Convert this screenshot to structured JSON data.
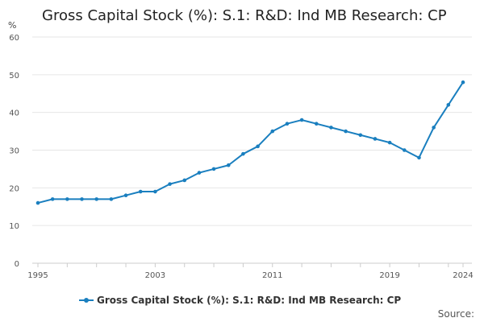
{
  "chart_data": {
    "type": "line",
    "title": "Gross Capital Stock (%): S.1: R&D: Ind MB Research: CP",
    "unit_label": "%",
    "xlabel": "",
    "ylabel": "%",
    "x": [
      1995,
      1996,
      1997,
      1998,
      1999,
      2000,
      2001,
      2002,
      2003,
      2004,
      2005,
      2006,
      2007,
      2008,
      2009,
      2010,
      2011,
      2012,
      2013,
      2014,
      2015,
      2016,
      2017,
      2018,
      2019,
      2020,
      2021,
      2022,
      2023,
      2024
    ],
    "series": [
      {
        "name": "Gross Capital Stock (%): S.1: R&D: Ind MB Research: CP",
        "color": "#1a7fbf",
        "values": [
          16,
          17,
          17,
          17,
          17,
          17,
          18,
          19,
          19,
          21,
          22,
          24,
          25,
          26,
          29,
          31,
          35,
          37,
          38,
          37,
          36,
          35,
          34,
          33,
          32,
          30,
          28,
          36,
          42,
          48
        ]
      }
    ],
    "xlim": [
      1995,
      2024
    ],
    "ylim": [
      0,
      60
    ],
    "yticks": [
      0,
      10,
      20,
      30,
      40,
      50,
      60
    ],
    "xtick_labels": [
      1995,
      2003,
      2011,
      2019,
      2024
    ],
    "grid": true,
    "legend_position": "bottom"
  },
  "footer": {
    "source_label": "Source:"
  },
  "colors": {
    "series": "#1a7fbf",
    "grid": "#e6e6e6",
    "axis": "#cccccc"
  }
}
